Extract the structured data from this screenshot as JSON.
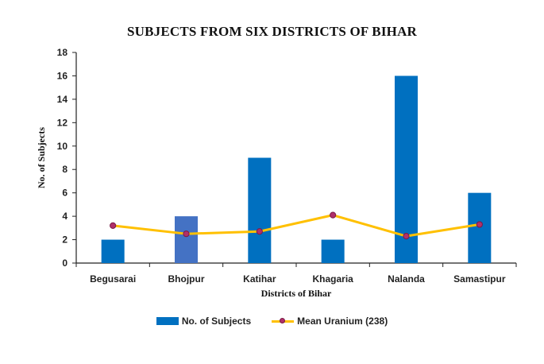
{
  "chart_data": {
    "type": "bar",
    "title": "SUBJECTS FROM SIX DISTRICTS OF BIHAR",
    "xlabel": "Districts of Bihar",
    "ylabel": "No. of Subjects",
    "ylim": [
      0,
      18
    ],
    "yticks": [
      "0",
      "2",
      "4",
      "6",
      "8",
      "10",
      "12",
      "14",
      "16",
      "18"
    ],
    "categories": [
      "Begusarai",
      "Bhojpur",
      "Katihar",
      "Khagaria",
      "Nalanda",
      "Samastipur"
    ],
    "series": [
      {
        "name": "No. of Subjects",
        "kind": "bar",
        "color": "#0070C0",
        "highlight_color": "#4472C4",
        "highlight_index": 1,
        "values": [
          2,
          4,
          9,
          2,
          16,
          6
        ]
      },
      {
        "name": "Mean Uranium (238)",
        "kind": "line",
        "color": "#FFC000",
        "marker_color": "#B0306A",
        "values": [
          3.2,
          2.5,
          2.7,
          4.1,
          2.3,
          3.3
        ]
      }
    ],
    "grid": false,
    "legend": "bottom"
  }
}
